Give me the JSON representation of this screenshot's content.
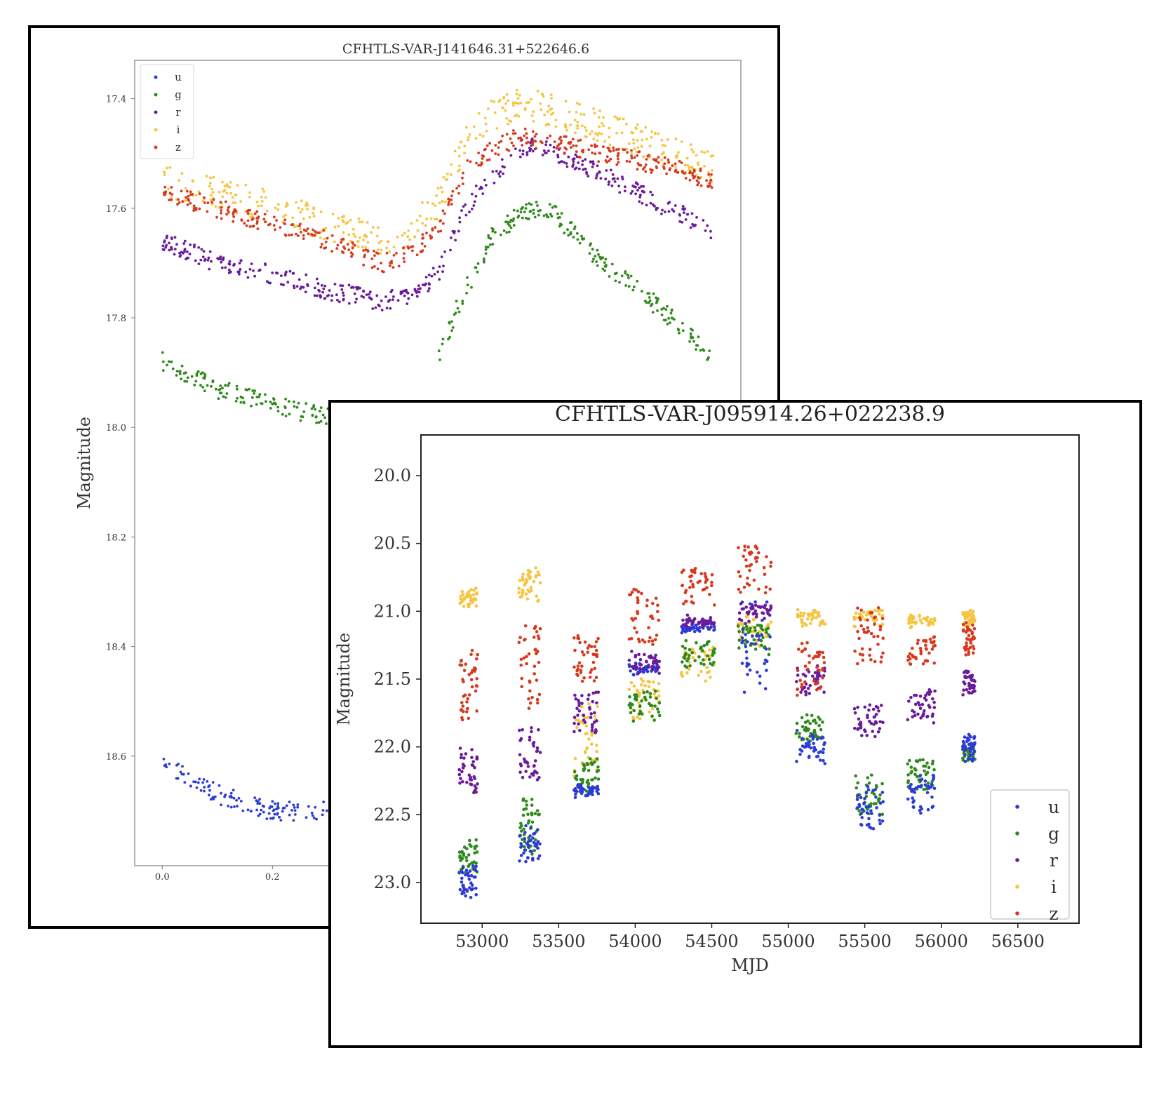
{
  "chart_data": [
    {
      "type": "scatter",
      "title": "CFHTLS-VAR-J141646.31+522646.6",
      "xlabel": "",
      "ylabel": "Magnitude",
      "y_inverted": true,
      "ylim": [
        18.8,
        17.33
      ],
      "xlim": [
        -0.05,
        1.05
      ],
      "yticks": [
        "17.4",
        "17.6",
        "17.8",
        "18.0",
        "18.2",
        "18.4",
        "18.6"
      ],
      "xticks": [
        "0.0",
        "0.2"
      ],
      "legend_position": "upper-left",
      "grid": false,
      "series": [
        {
          "name": "u",
          "color": "#2b3bd6",
          "key_x": [
            0.0,
            0.1,
            0.2,
            0.3
          ],
          "key_y": [
            18.61,
            18.67,
            18.7,
            18.7
          ]
        },
        {
          "name": "g",
          "color": "#2f8a1c",
          "key_x": [
            0.0,
            0.1,
            0.2,
            0.3,
            0.45,
            0.5,
            0.54,
            0.6,
            0.65,
            0.7,
            0.8,
            0.9,
            1.0
          ],
          "key_y": [
            17.88,
            17.93,
            17.96,
            17.98,
            18.0,
            17.88,
            17.77,
            17.65,
            17.61,
            17.6,
            17.7,
            17.78,
            17.87
          ]
        },
        {
          "name": "r",
          "color": "#6a1b9a",
          "key_x": [
            0.0,
            0.1,
            0.2,
            0.3,
            0.4,
            0.45,
            0.5,
            0.55,
            0.6,
            0.65,
            0.7,
            0.8,
            0.9,
            1.0
          ],
          "key_y": [
            17.66,
            17.7,
            17.72,
            17.75,
            17.77,
            17.76,
            17.72,
            17.6,
            17.54,
            17.49,
            17.49,
            17.54,
            17.59,
            17.64
          ]
        },
        {
          "name": "i",
          "color": "#f5c542",
          "key_x": [
            0.0,
            0.1,
            0.2,
            0.3,
            0.4,
            0.45,
            0.5,
            0.55,
            0.6,
            0.65,
            0.7,
            0.8,
            0.9,
            1.0
          ],
          "key_y": [
            17.55,
            17.57,
            17.6,
            17.63,
            17.66,
            17.64,
            17.59,
            17.48,
            17.43,
            17.41,
            17.42,
            17.45,
            17.49,
            17.53
          ]
        },
        {
          "name": "z",
          "color": "#d7391e",
          "key_x": [
            0.0,
            0.1,
            0.2,
            0.3,
            0.4,
            0.45,
            0.5,
            0.55,
            0.6,
            0.65,
            0.7,
            0.8,
            0.9,
            1.0
          ],
          "key_y": [
            17.57,
            17.6,
            17.63,
            17.66,
            17.7,
            17.68,
            17.64,
            17.53,
            17.49,
            17.47,
            17.48,
            17.5,
            17.52,
            17.55
          ]
        }
      ]
    },
    {
      "type": "scatter",
      "title": "CFHTLS-VAR-J095914.26+022238.9",
      "xlabel": "MJD",
      "ylabel": "Magnitude",
      "y_inverted": true,
      "ylim": [
        23.3,
        19.7
      ],
      "xlim": [
        52600,
        56900
      ],
      "yticks": [
        20.0,
        20.5,
        21.0,
        21.5,
        22.0,
        22.5,
        23.0
      ],
      "ytick_labels": [
        "20.0",
        "20.5",
        "21.0",
        "21.5",
        "22.0",
        "22.5",
        "23.0"
      ],
      "xticks": [
        53000,
        53500,
        54000,
        54500,
        55000,
        55500,
        56000,
        56500
      ],
      "xtick_labels": [
        "53000",
        "53500",
        "54000",
        "54500",
        "55000",
        "55500",
        "56000",
        "56500"
      ],
      "legend_position": "lower-right",
      "grid": false,
      "seasons": [
        {
          "mjd": [
            52850,
            52970
          ],
          "u": [
            22.9,
            23.1
          ],
          "g": [
            22.7,
            22.95
          ],
          "r": [
            22.0,
            22.35
          ],
          "i": [
            20.85,
            20.95
          ],
          "z": [
            21.3,
            21.8
          ]
        },
        {
          "mjd": [
            53240,
            53380
          ],
          "u": [
            22.6,
            22.85
          ],
          "g": [
            22.4,
            22.8
          ],
          "r": [
            21.85,
            22.25
          ],
          "i": [
            20.7,
            20.9
          ],
          "z": [
            21.1,
            21.7
          ]
        },
        {
          "mjd": [
            53600,
            53760
          ],
          "u": [
            22.3,
            22.35
          ],
          "g": [
            22.1,
            22.35
          ],
          "r": [
            21.6,
            21.9
          ],
          "i": [
            21.7,
            22.2
          ],
          "z": [
            21.2,
            21.5
          ]
        },
        {
          "mjd": [
            53960,
            54160
          ],
          "u": [
            21.4,
            21.45
          ],
          "g": [
            21.6,
            21.8
          ],
          "r": [
            21.3,
            21.45
          ],
          "i": [
            21.5,
            21.8
          ],
          "z": [
            20.85,
            21.25
          ]
        },
        {
          "mjd": [
            54300,
            54520
          ],
          "u": [
            21.1,
            21.15
          ],
          "g": [
            21.2,
            21.4
          ],
          "r": [
            21.05,
            21.1
          ],
          "i": [
            21.25,
            21.5
          ],
          "z": [
            20.7,
            20.95
          ]
        },
        {
          "mjd": [
            54670,
            54890
          ],
          "u": [
            20.95,
            21.6
          ],
          "g": [
            21.1,
            21.3
          ],
          "r": [
            20.95,
            21.05
          ],
          "i": [
            21.05,
            21.25
          ],
          "z": [
            20.5,
            20.85
          ]
        },
        {
          "mjd": [
            55050,
            55240
          ],
          "u": [
            21.9,
            22.1
          ],
          "g": [
            21.75,
            22.0
          ],
          "r": [
            21.4,
            21.6
          ],
          "i": [
            21.0,
            21.1
          ],
          "z": [
            21.2,
            21.6
          ]
        },
        {
          "mjd": [
            55430,
            55620
          ],
          "u": [
            22.3,
            22.6
          ],
          "g": [
            22.2,
            22.5
          ],
          "r": [
            21.7,
            21.9
          ],
          "i": [
            21.0,
            21.1
          ],
          "z": [
            21.0,
            21.4
          ]
        },
        {
          "mjd": [
            55780,
            55960
          ],
          "u": [
            22.2,
            22.5
          ],
          "g": [
            22.1,
            22.3
          ],
          "r": [
            21.6,
            21.8
          ],
          "i": [
            21.05,
            21.1
          ],
          "z": [
            21.2,
            21.4
          ]
        },
        {
          "mjd": [
            56140,
            56220
          ],
          "u": [
            21.9,
            22.1
          ],
          "g": [
            22.0,
            22.1
          ],
          "r": [
            21.45,
            21.6
          ],
          "i": [
            21.0,
            21.1
          ],
          "z": [
            21.1,
            21.3
          ]
        }
      ],
      "series": [
        {
          "name": "u",
          "color": "#2b3bd6"
        },
        {
          "name": "g",
          "color": "#2f8a1c"
        },
        {
          "name": "r",
          "color": "#6a1b9a"
        },
        {
          "name": "i",
          "color": "#f5c542"
        },
        {
          "name": "z",
          "color": "#d7391e"
        }
      ]
    }
  ]
}
